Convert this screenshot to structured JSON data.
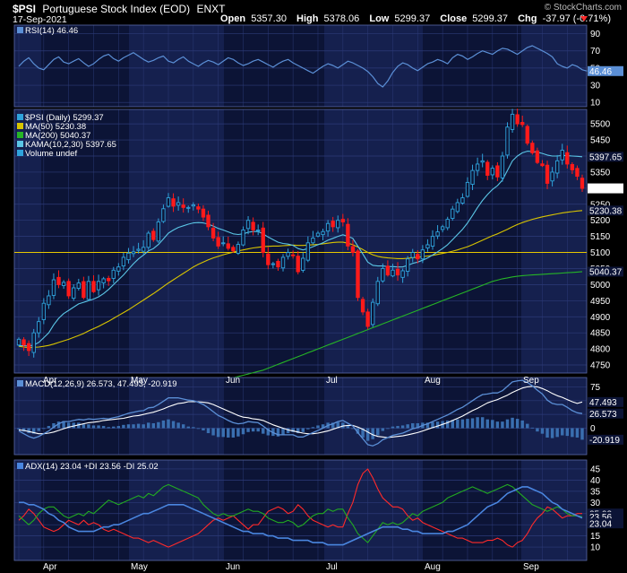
{
  "header": {
    "symbol": "$PSI",
    "name": "Portuguese Stock Index (EOD)",
    "exchange": "ENXT",
    "date": "17-Sep-2021",
    "open_label": "Open",
    "open": "5357.30",
    "high_label": "High",
    "high": "5378.06",
    "low_label": "Low",
    "low": "5299.37",
    "close_label": "Close",
    "close": "5299.37",
    "chg_label": "Chg",
    "chg": "-37.97 (-0.71%)",
    "watermark": "© StockCharts.com"
  },
  "colors": {
    "background": "#000000",
    "panel_bg": "#0c1436",
    "grid": "#2c3a78",
    "band": "#1e2a62",
    "up": "#2fa3dc",
    "down": "#ff1a1a",
    "ma50": "#d8c400",
    "ma200": "#26b526",
    "kama": "#5bc6e6",
    "macd": "#5b8fd6",
    "signal": "#ffffff",
    "hist": "#3a6fb0",
    "adx": "#4a86e0",
    "plusdi": "#22aa22",
    "minusdi": "#ff2a2a",
    "rsi": "#5b8fd6",
    "hline": "#e8c800"
  },
  "months": [
    "Apr",
    "May",
    "Jun",
    "Jul",
    "Aug",
    "Sep"
  ],
  "chart_data": [
    {
      "type": "line",
      "panel": "rsi",
      "legend": "RSI(14) 46.46",
      "last_label": "46.46",
      "yticks": [
        10,
        30,
        50,
        70,
        90
      ],
      "ylim": [
        5,
        100
      ],
      "values": [
        52,
        58,
        62,
        55,
        50,
        48,
        54,
        60,
        63,
        57,
        55,
        58,
        61,
        56,
        52,
        55,
        60,
        64,
        66,
        61,
        58,
        62,
        65,
        68,
        64,
        60,
        57,
        59,
        62,
        64,
        58,
        56,
        60,
        63,
        58,
        55,
        52,
        56,
        59,
        57,
        54,
        58,
        62,
        60,
        56,
        53,
        55,
        58,
        60,
        57,
        54,
        51,
        55,
        58,
        60,
        56,
        53,
        50,
        47,
        44,
        48,
        52,
        55,
        53,
        50,
        54,
        58,
        56,
        53,
        50,
        46,
        40,
        32,
        28,
        35,
        45,
        52,
        56,
        54,
        50,
        47,
        51,
        55,
        57,
        60,
        58,
        55,
        62,
        66,
        64,
        60,
        63,
        67,
        70,
        68,
        66,
        70,
        73,
        72,
        69,
        66,
        70,
        74,
        76,
        73,
        70,
        67,
        63,
        55,
        52,
        50,
        54,
        52,
        48,
        46.46
      ]
    },
    {
      "type": "candlestick",
      "panel": "price",
      "legend": [
        "$PSI (Daily) 5299.37",
        "MA(50) 5230.38",
        "MA(200) 5040.37",
        "KAMA(10,2,30) 5397.65",
        "Volume undef"
      ],
      "yticks": [
        4750,
        4800,
        4850,
        4900,
        4950,
        5000,
        5050,
        5100,
        5150,
        5200,
        5250,
        5300,
        5350,
        5400,
        5450,
        5500
      ],
      "ylim": [
        4725,
        5545
      ],
      "horizontal_line": 5100,
      "price_labels": {
        "close": "5299.37",
        "kama": "5397.65",
        "ma50": "5230.38",
        "ma200": "5040.37"
      },
      "close": [
        4830,
        4812,
        4795,
        4850,
        4885,
        4942,
        4965,
        5015,
        5000,
        5007,
        4965,
        4990,
        5005,
        4960,
        5010,
        4978,
        5010,
        5018,
        5012,
        5045,
        5055,
        5085,
        5098,
        5102,
        5110,
        5116,
        5160,
        5140,
        5195,
        5236,
        5270,
        5244,
        5255,
        5240,
        5240,
        5248,
        5235,
        5210,
        5180,
        5145,
        5120,
        5130,
        5113,
        5105,
        5125,
        5170,
        5200,
        5170,
        5170,
        5100,
        5062,
        5065,
        5055,
        5085,
        5100,
        5090,
        5040,
        5082,
        5130,
        5145,
        5160,
        5165,
        5190,
        5180,
        5200,
        5195,
        5120,
        5100,
        4960,
        4915,
        4870,
        4945,
        5010,
        5050,
        5030,
        5045,
        5030,
        5043,
        5080,
        5100,
        5080,
        5108,
        5124,
        5150,
        5164,
        5180,
        5203,
        5235,
        5255,
        5270,
        5318,
        5355,
        5375,
        5385,
        5340,
        5362,
        5335,
        5400,
        5490,
        5530,
        5500,
        5498,
        5440,
        5410,
        5380,
        5370,
        5315,
        5350,
        5385,
        5418,
        5375,
        5357,
        5337,
        5299.37
      ],
      "ma50": [
        4808,
        4806,
        4804,
        4805,
        4806,
        4808,
        4811,
        4815,
        4820,
        4825,
        4830,
        4836,
        4842,
        4848,
        4856,
        4863,
        4870,
        4878,
        4886,
        4895,
        4904,
        4913,
        4922,
        4932,
        4942,
        4952,
        4962,
        4972,
        4983,
        4994,
        5005,
        5015,
        5025,
        5035,
        5045,
        5055,
        5063,
        5070,
        5077,
        5083,
        5088,
        5093,
        5097,
        5101,
        5105,
        5108,
        5111,
        5114,
        5116,
        5118,
        5119,
        5120,
        5120,
        5121,
        5122,
        5123,
        5122,
        5122,
        5123,
        5124,
        5125,
        5127,
        5129,
        5131,
        5132,
        5132,
        5129,
        5124,
        5117,
        5109,
        5100,
        5093,
        5088,
        5085,
        5083,
        5082,
        5081,
        5081,
        5082,
        5084,
        5085,
        5087,
        5089,
        5091,
        5094,
        5097,
        5100,
        5104,
        5108,
        5113,
        5118,
        5124,
        5131,
        5138,
        5145,
        5152,
        5158,
        5165,
        5172,
        5180,
        5187,
        5193,
        5198,
        5203,
        5207,
        5211,
        5214,
        5217,
        5220,
        5223,
        5225,
        5227,
        5229,
        5230.38
      ],
      "ma200": [
        4538,
        4542,
        4546,
        4550,
        4554,
        4558,
        4562,
        4566,
        4570,
        4574,
        4578,
        4582,
        4586,
        4590,
        4594,
        4598,
        4602,
        4606,
        4610,
        4614,
        4618,
        4622,
        4626,
        4630,
        4634,
        4638,
        4642,
        4646,
        4650,
        4654,
        4658,
        4662,
        4666,
        4670,
        4674,
        4678,
        4682,
        4686,
        4690,
        4694,
        4698,
        4702,
        4706,
        4710,
        4714,
        4718,
        4722,
        4726,
        4730,
        4734,
        4740,
        4746,
        4752,
        4758,
        4764,
        4770,
        4776,
        4782,
        4788,
        4794,
        4800,
        4806,
        4812,
        4818,
        4824,
        4830,
        4836,
        4842,
        4848,
        4854,
        4860,
        4866,
        4872,
        4878,
        4884,
        4890,
        4896,
        4902,
        4908,
        4914,
        4920,
        4926,
        4932,
        4938,
        4944,
        4950,
        4956,
        4962,
        4968,
        4974,
        4980,
        4986,
        4992,
        4998,
        5004,
        5010,
        5014,
        5018,
        5021,
        5024,
        5026,
        5028,
        5029,
        5030,
        5031,
        5032,
        5033,
        5034,
        5035,
        5036,
        5037,
        5038,
        5039,
        5040.37
      ],
      "kama": [
        4810,
        4810,
        4809,
        4812,
        4820,
        4835,
        4850,
        4875,
        4895,
        4910,
        4920,
        4930,
        4940,
        4945,
        4950,
        4955,
        4962,
        4972,
        4985,
        5000,
        5015,
        5030,
        5048,
        5065,
        5080,
        5092,
        5105,
        5112,
        5125,
        5142,
        5160,
        5170,
        5178,
        5183,
        5188,
        5192,
        5193,
        5192,
        5188,
        5182,
        5175,
        5170,
        5164,
        5158,
        5156,
        5158,
        5163,
        5165,
        5165,
        5158,
        5148,
        5140,
        5132,
        5128,
        5126,
        5122,
        5112,
        5108,
        5112,
        5118,
        5124,
        5130,
        5138,
        5144,
        5150,
        5155,
        5150,
        5144,
        5120,
        5095,
        5070,
        5060,
        5058,
        5058,
        5056,
        5056,
        5055,
        5055,
        5060,
        5066,
        5070,
        5076,
        5083,
        5092,
        5102,
        5112,
        5124,
        5140,
        5156,
        5172,
        5192,
        5215,
        5240,
        5262,
        5280,
        5296,
        5308,
        5325,
        5355,
        5385,
        5400,
        5410,
        5415,
        5414,
        5412,
        5408,
        5403,
        5400,
        5400,
        5402,
        5401,
        5400,
        5399,
        5397.65
      ]
    },
    {
      "type": "line",
      "panel": "macd",
      "legend": "MACD(12,26,9) 26.573, 47.493, -20.919",
      "yticks": [
        0,
        25,
        50,
        75
      ],
      "ylim": [
        -48,
        92
      ],
      "last_labels": {
        "signal": "47.493",
        "macd": "26.573",
        "hist": "-20.919"
      },
      "macd": [
        -5,
        -10,
        -15,
        -18,
        -15,
        -10,
        -5,
        2,
        8,
        12,
        12,
        14,
        16,
        15,
        17,
        16,
        17,
        18,
        17,
        19,
        21,
        24,
        27,
        29,
        31,
        32,
        37,
        38,
        43,
        49,
        55,
        55,
        55,
        53,
        51,
        50,
        47,
        43,
        37,
        30,
        23,
        19,
        14,
        10,
        8,
        9,
        12,
        11,
        10,
        4,
        -3,
        -8,
        -12,
        -12,
        -12,
        -12,
        -16,
        -16,
        -12,
        -8,
        -4,
        0,
        5,
        8,
        12,
        14,
        9,
        4,
        -8,
        -19,
        -30,
        -32,
        -28,
        -21,
        -17,
        -13,
        -11,
        -9,
        -5,
        -1,
        1,
        5,
        8,
        12,
        16,
        20,
        24,
        29,
        34,
        38,
        44,
        50,
        56,
        61,
        62,
        64,
        64,
        68,
        76,
        84,
        86,
        87,
        83,
        77,
        69,
        62,
        51,
        45,
        43,
        43,
        38,
        32,
        28,
        26.573
      ],
      "signal": [
        -3,
        -4,
        -6,
        -8,
        -10,
        -10,
        -9,
        -7,
        -4,
        -1,
        2,
        4,
        6,
        8,
        10,
        11,
        12,
        14,
        15,
        16,
        17,
        18,
        20,
        22,
        23,
        25,
        27,
        29,
        32,
        35,
        39,
        42,
        45,
        46,
        48,
        48,
        48,
        47,
        46,
        43,
        39,
        35,
        31,
        27,
        23,
        20,
        19,
        17,
        16,
        14,
        10,
        6,
        3,
        0,
        -3,
        -5,
        -7,
        -9,
        -10,
        -10,
        -9,
        -7,
        -5,
        -2,
        1,
        4,
        5,
        5,
        2,
        -2,
        -7,
        -12,
        -15,
        -16,
        -17,
        -16,
        -15,
        -14,
        -12,
        -10,
        -8,
        -5,
        -2,
        1,
        4,
        7,
        10,
        14,
        18,
        22,
        27,
        32,
        36,
        41,
        46,
        49,
        52,
        56,
        60,
        65,
        69,
        73,
        75,
        76,
        75,
        72,
        68,
        63,
        59,
        56,
        52,
        48,
        45,
        47.493
      ]
    },
    {
      "type": "line",
      "panel": "adx",
      "legend": "ADX(14) 23.04 +DI 23.56 -DI 25.02",
      "yticks": [
        10,
        15,
        20,
        25,
        30,
        35,
        40,
        45
      ],
      "ylim": [
        4,
        49
      ],
      "last_labels": {
        "minusdi": "25.02",
        "plusdi": "23.56",
        "adx": "23.04"
      },
      "adx": [
        30,
        30,
        29,
        29,
        28,
        27,
        25,
        24,
        22,
        21,
        19,
        18,
        17,
        17,
        17,
        17,
        18,
        19,
        19,
        20,
        20,
        21,
        22,
        23,
        24,
        25,
        25,
        26,
        27,
        28,
        29,
        29,
        29,
        29,
        28,
        27,
        26,
        25,
        24,
        23,
        22,
        21,
        20,
        19,
        18,
        17,
        17,
        16,
        16,
        16,
        15,
        15,
        14,
        14,
        14,
        13,
        13,
        13,
        13,
        12,
        12,
        12,
        11,
        11,
        11,
        11,
        12,
        13,
        14,
        15,
        16,
        17,
        18,
        19,
        19,
        19,
        19,
        18,
        18,
        17,
        17,
        16,
        16,
        16,
        16,
        16,
        17,
        17,
        18,
        19,
        20,
        22,
        24,
        26,
        28,
        29,
        30,
        32,
        34,
        35,
        36,
        37,
        37,
        36,
        35,
        34,
        32,
        30,
        29,
        27,
        26,
        25,
        24,
        23.04
      ],
      "plusdi": [
        24,
        22,
        20,
        22,
        25,
        27,
        28,
        28,
        26,
        24,
        23,
        24,
        25,
        24,
        26,
        25,
        27,
        29,
        31,
        30,
        29,
        30,
        31,
        32,
        33,
        32,
        34,
        33,
        35,
        37,
        38,
        37,
        36,
        35,
        34,
        33,
        32,
        29,
        27,
        25,
        24,
        25,
        24,
        24,
        25,
        26,
        27,
        26,
        26,
        25,
        23,
        22,
        21,
        21,
        22,
        21,
        19,
        20,
        22,
        24,
        25,
        25,
        27,
        26,
        27,
        27,
        23,
        20,
        16,
        14,
        12,
        15,
        18,
        21,
        20,
        21,
        20,
        21,
        23,
        25,
        24,
        26,
        27,
        28,
        29,
        30,
        32,
        33,
        34,
        35,
        36,
        37,
        36,
        35,
        34,
        35,
        36,
        37,
        38,
        37,
        35,
        33,
        31,
        29,
        28,
        27,
        26,
        27,
        28,
        27,
        25,
        24,
        24,
        23.56
      ],
      "minusdi": [
        22,
        24,
        27,
        25,
        22,
        19,
        18,
        17,
        18,
        20,
        22,
        21,
        20,
        22,
        20,
        21,
        20,
        18,
        17,
        18,
        17,
        16,
        15,
        14,
        14,
        13,
        12,
        13,
        12,
        11,
        10,
        11,
        12,
        13,
        14,
        15,
        16,
        18,
        20,
        22,
        23,
        22,
        23,
        24,
        22,
        20,
        18,
        20,
        20,
        23,
        26,
        27,
        28,
        27,
        25,
        26,
        29,
        27,
        24,
        22,
        21,
        20,
        19,
        20,
        19,
        19,
        25,
        30,
        38,
        43,
        45,
        41,
        36,
        32,
        30,
        28,
        28,
        27,
        24,
        22,
        23,
        21,
        20,
        19,
        18,
        17,
        16,
        15,
        14,
        14,
        13,
        12,
        12,
        12,
        13,
        13,
        14,
        13,
        11,
        10,
        12,
        13,
        16,
        20,
        23,
        25,
        28,
        27,
        25,
        23,
        24,
        24,
        25,
        25.02
      ]
    }
  ]
}
